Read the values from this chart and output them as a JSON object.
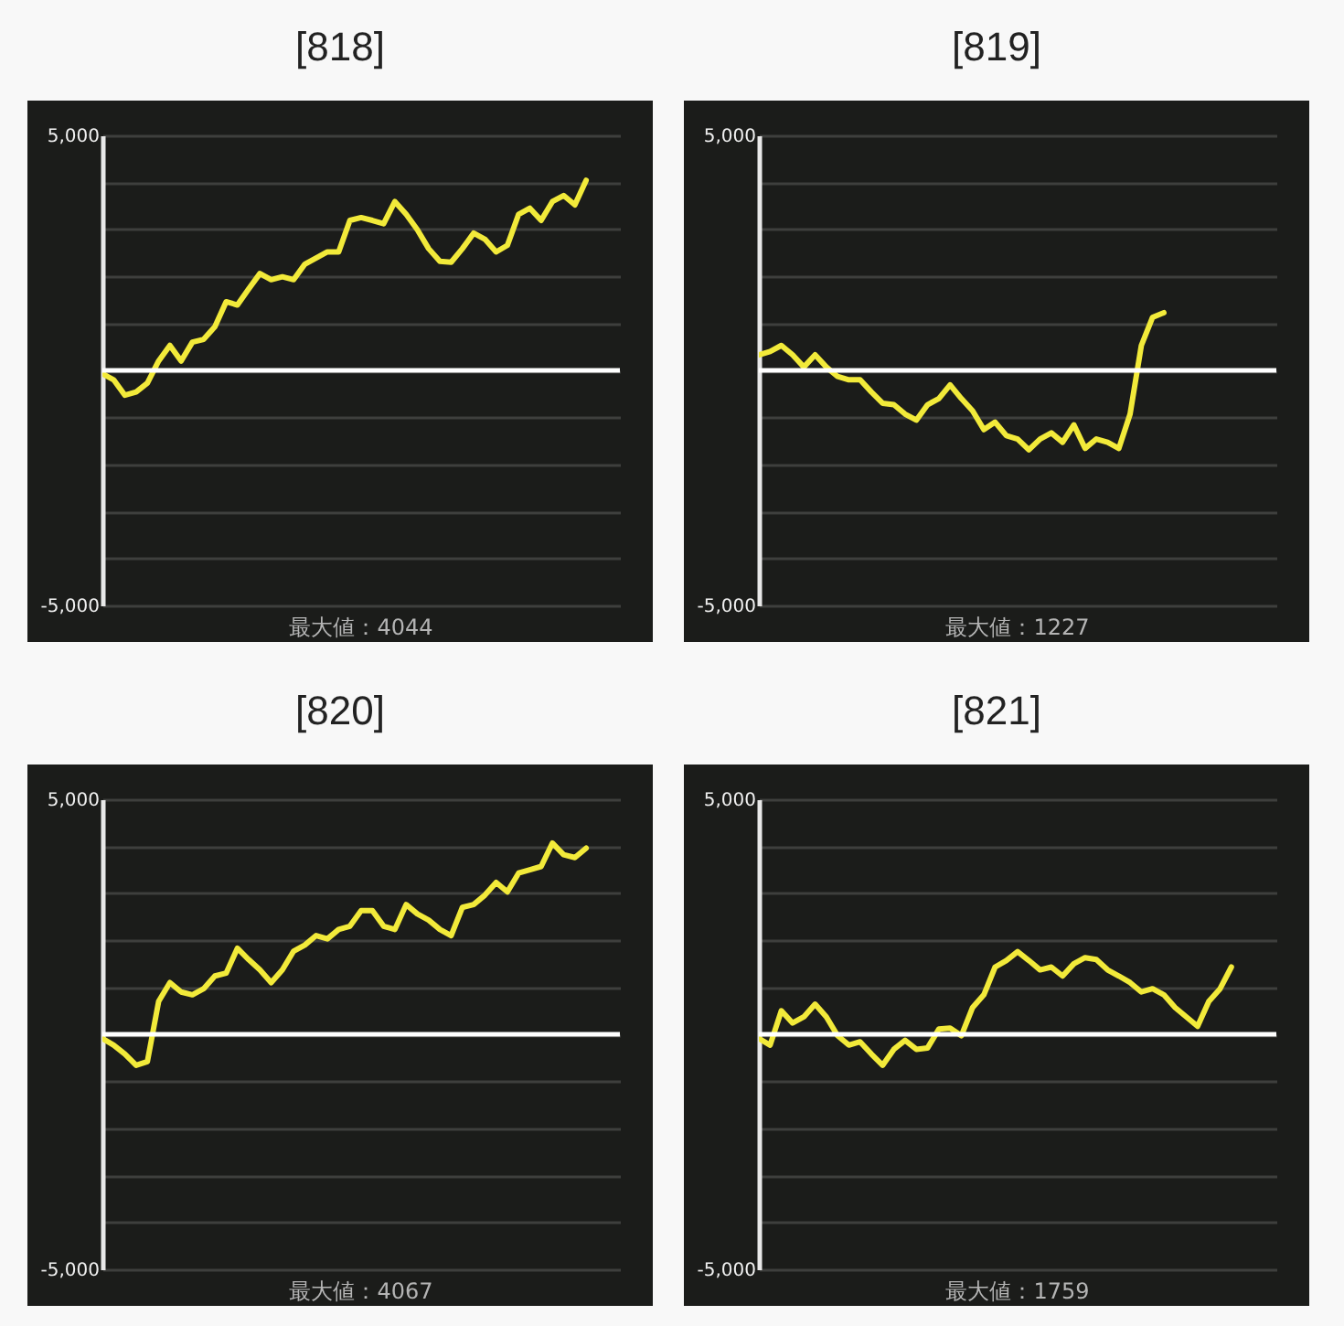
{
  "chart_data": [
    {
      "type": "line",
      "title": "[818]",
      "annotations": [
        "最大値：4044"
      ],
      "categories": [
        null,
        null,
        null,
        null,
        null,
        null,
        null,
        null,
        null,
        null,
        null,
        null,
        null,
        null,
        null,
        null,
        null,
        null,
        null,
        null,
        null,
        null,
        null,
        null,
        null,
        null,
        null,
        null,
        null,
        null,
        null,
        null,
        null,
        null,
        null,
        null,
        null,
        null,
        null,
        null,
        null,
        null,
        null,
        null,
        null,
        null,
        null
      ],
      "series": [
        {
          "color": "#f2ea3a",
          "values": [
            -70,
            -200,
            -530,
            -460,
            -270,
            200,
            530,
            200,
            600,
            660,
            930,
            1460,
            1390,
            1730,
            2060,
            1930,
            1990,
            1930,
            2260,
            2390,
            2520,
            2520,
            3190,
            3250,
            3190,
            3120,
            3590,
            3320,
            2990,
            2590,
            2320,
            2300,
            2590,
            2920,
            2790,
            2520,
            2660,
            3320,
            3450,
            3190,
            3590,
            3720,
            3520,
            4044,
            null,
            null,
            null
          ]
        }
      ],
      "ylim": [
        -5000,
        5000
      ],
      "yticks": [
        {
          "value": -5000,
          "label": "-5,000"
        },
        {
          "value": -4000,
          "label": null
        },
        {
          "value": -3000,
          "label": null
        },
        {
          "value": -2000,
          "label": null
        },
        {
          "value": -1000,
          "label": null
        },
        {
          "value": 0,
          "label": null
        },
        {
          "value": 1000,
          "label": null
        },
        {
          "value": 2000,
          "label": null
        },
        {
          "value": 3000,
          "label": null
        },
        {
          "value": 4000,
          "label": null
        },
        {
          "value": 5000,
          "label": "5,000"
        }
      ],
      "grid": "y",
      "tick_labels": "y",
      "ref_lines": [
        {
          "axis": "y",
          "value": 0,
          "color": "#ffffff"
        }
      ]
    },
    {
      "type": "line",
      "title": "[819]",
      "annotations": [
        "最大値：1227"
      ],
      "categories": [
        null,
        null,
        null,
        null,
        null,
        null,
        null,
        null,
        null,
        null,
        null,
        null,
        null,
        null,
        null,
        null,
        null,
        null,
        null,
        null,
        null,
        null,
        null,
        null,
        null,
        null,
        null,
        null,
        null,
        null,
        null,
        null,
        null,
        null,
        null,
        null,
        null,
        null,
        null,
        null,
        null,
        null,
        null,
        null,
        null,
        null,
        null
      ],
      "series": [
        {
          "color": "#f2ea3a",
          "values": [
            330,
            400,
            530,
            330,
            70,
            330,
            70,
            -130,
            -200,
            -200,
            -460,
            -700,
            -730,
            -930,
            -1060,
            -730,
            -600,
            -310,
            -600,
            -860,
            -1260,
            -1100,
            -1390,
            -1460,
            -1690,
            -1460,
            -1330,
            -1530,
            -1160,
            -1660,
            -1460,
            -1530,
            -1660,
            -930,
            530,
            1130,
            1227,
            null,
            null,
            null,
            null,
            null,
            null,
            null,
            null,
            null,
            null
          ]
        }
      ],
      "ylim": [
        -5000,
        5000
      ],
      "yticks": [
        {
          "value": -5000,
          "label": "-5,000"
        },
        {
          "value": -4000,
          "label": null
        },
        {
          "value": -3000,
          "label": null
        },
        {
          "value": -2000,
          "label": null
        },
        {
          "value": -1000,
          "label": null
        },
        {
          "value": 0,
          "label": null
        },
        {
          "value": 1000,
          "label": null
        },
        {
          "value": 2000,
          "label": null
        },
        {
          "value": 3000,
          "label": null
        },
        {
          "value": 4000,
          "label": null
        },
        {
          "value": 5000,
          "label": "5,000"
        }
      ],
      "grid": "y",
      "tick_labels": "y",
      "ref_lines": [
        {
          "axis": "y",
          "value": 0,
          "color": "#ffffff"
        }
      ]
    },
    {
      "type": "line",
      "title": "[820]",
      "annotations": [
        "最大値：4067"
      ],
      "categories": [
        null,
        null,
        null,
        null,
        null,
        null,
        null,
        null,
        null,
        null,
        null,
        null,
        null,
        null,
        null,
        null,
        null,
        null,
        null,
        null,
        null,
        null,
        null,
        null,
        null,
        null,
        null,
        null,
        null,
        null,
        null,
        null,
        null,
        null,
        null,
        null,
        null,
        null,
        null,
        null,
        null,
        null,
        null,
        null,
        null,
        null,
        null
      ],
      "series": [
        {
          "color": "#f2ea3a",
          "values": [
            -90,
            -230,
            -420,
            -660,
            -580,
            700,
            1100,
            900,
            840,
            970,
            1240,
            1300,
            1830,
            1590,
            1370,
            1100,
            1370,
            1770,
            1900,
            2100,
            2030,
            2230,
            2300,
            2630,
            2630,
            2300,
            2230,
            2760,
            2560,
            2430,
            2230,
            2100,
            2700,
            2760,
            2960,
            3230,
            3030,
            3430,
            3500,
            3570,
            4067,
            3820,
            3760,
            3960,
            null,
            null,
            null
          ]
        }
      ],
      "ylim": [
        -5000,
        5000
      ],
      "yticks": [
        {
          "value": -5000,
          "label": "-5,000"
        },
        {
          "value": -4000,
          "label": null
        },
        {
          "value": -3000,
          "label": null
        },
        {
          "value": -2000,
          "label": null
        },
        {
          "value": -1000,
          "label": null
        },
        {
          "value": 0,
          "label": null
        },
        {
          "value": 1000,
          "label": null
        },
        {
          "value": 2000,
          "label": null
        },
        {
          "value": 3000,
          "label": null
        },
        {
          "value": 4000,
          "label": null
        },
        {
          "value": 5000,
          "label": "5,000"
        }
      ],
      "grid": "y",
      "tick_labels": "y",
      "ref_lines": [
        {
          "axis": "y",
          "value": 0,
          "color": "#ffffff"
        }
      ]
    },
    {
      "type": "line",
      "title": "[821]",
      "annotations": [
        "最大値：1759"
      ],
      "categories": [
        null,
        null,
        null,
        null,
        null,
        null,
        null,
        null,
        null,
        null,
        null,
        null,
        null,
        null,
        null,
        null,
        null,
        null,
        null,
        null,
        null,
        null,
        null,
        null,
        null,
        null,
        null,
        null,
        null,
        null,
        null,
        null,
        null,
        null,
        null,
        null,
        null,
        null,
        null,
        null,
        null,
        null,
        null,
        null,
        null,
        null,
        null
      ],
      "series": [
        {
          "color": "#f2ea3a",
          "values": [
            -90,
            -230,
            500,
            240,
            370,
            640,
            370,
            -30,
            -230,
            -160,
            -420,
            -660,
            -320,
            -130,
            -320,
            -290,
            110,
            130,
            -30,
            570,
            840,
            1430,
            1570,
            1759,
            1570,
            1370,
            1430,
            1240,
            1500,
            1630,
            1590,
            1370,
            1240,
            1100,
            900,
            970,
            840,
            570,
            370,
            170,
            700,
            970,
            1430,
            null,
            null,
            null,
            null
          ]
        }
      ],
      "ylim": [
        -5000,
        5000
      ],
      "yticks": [
        {
          "value": -5000,
          "label": "-5,000"
        },
        {
          "value": -4000,
          "label": null
        },
        {
          "value": -3000,
          "label": null
        },
        {
          "value": -2000,
          "label": null
        },
        {
          "value": -1000,
          "label": null
        },
        {
          "value": 0,
          "label": null
        },
        {
          "value": 1000,
          "label": null
        },
        {
          "value": 2000,
          "label": null
        },
        {
          "value": 3000,
          "label": null
        },
        {
          "value": 4000,
          "label": null
        },
        {
          "value": 5000,
          "label": "5,000"
        }
      ],
      "grid": "y",
      "tick_labels": "y",
      "ref_lines": [
        {
          "axis": "y",
          "value": 0,
          "color": "#ffffff"
        }
      ]
    }
  ]
}
